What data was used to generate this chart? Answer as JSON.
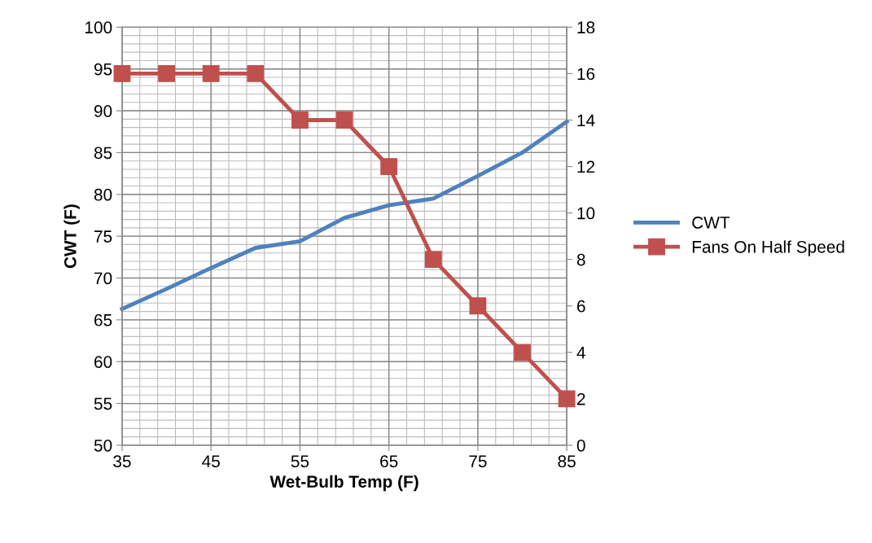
{
  "chart_data": {
    "type": "line",
    "xlabel": "Wet-Bulb Temp (F)",
    "ylabel": "CWT (F)",
    "x": [
      35,
      40,
      45,
      50,
      55,
      60,
      65,
      70,
      75,
      80,
      85
    ],
    "series": [
      {
        "name": "CWT",
        "color": "#4f81bd",
        "values": [
          66.3,
          68.7,
          71.2,
          73.6,
          74.4,
          77.2,
          78.7,
          79.5,
          82.2,
          85.0,
          88.7
        ],
        "marker": "none"
      },
      {
        "name": "Fans On Half Speed",
        "color": "#c0504d",
        "values": [
          16,
          16,
          16,
          16,
          14,
          14,
          12,
          8,
          6,
          4,
          2
        ],
        "axis": "y2",
        "marker": "square"
      }
    ],
    "xlim": [
      35,
      85
    ],
    "xticks": [
      35,
      45,
      55,
      65,
      75,
      85
    ],
    "ylim": [
      50,
      100
    ],
    "yticks": [
      50,
      55,
      60,
      65,
      70,
      75,
      80,
      85,
      90,
      95,
      100
    ],
    "y2lim": [
      0,
      18
    ],
    "y2ticks": [
      0,
      2,
      4,
      6,
      8,
      10,
      12,
      14,
      16,
      18
    ],
    "grid": true,
    "legend": "right",
    "line_style": "solid"
  }
}
